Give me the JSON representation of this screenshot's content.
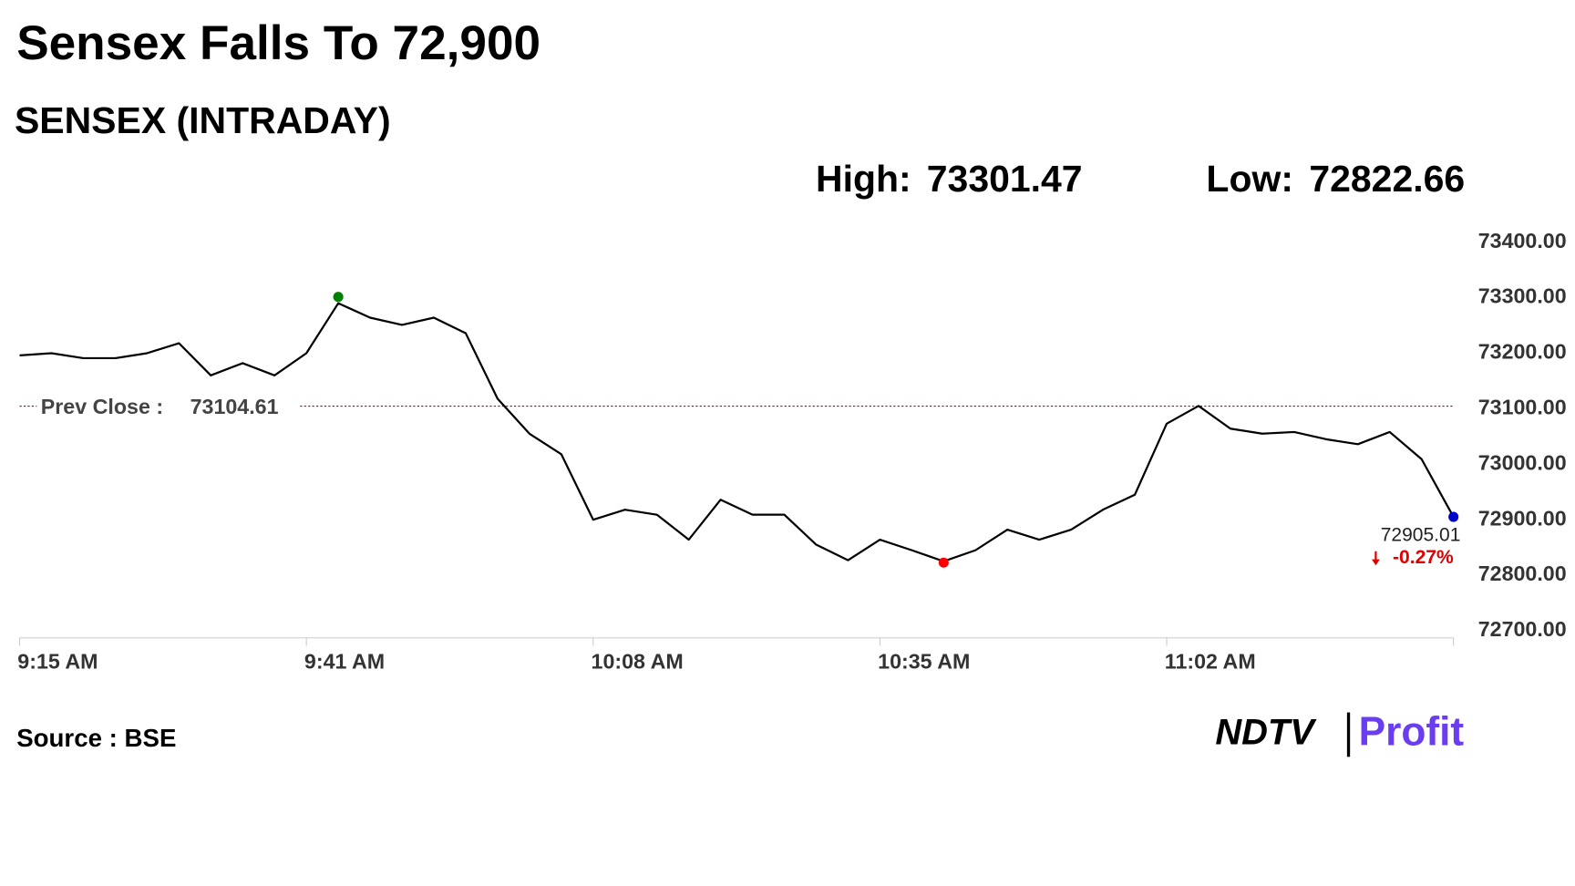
{
  "chart_data": {
    "type": "line",
    "title": "Sensex Falls To 72,900",
    "subtitle": "SENSEX (INTRADAY)",
    "high_label": "High:",
    "high": 73301.47,
    "low_label": "Low:",
    "low": 72822.66,
    "prev_close_label": "Prev Close :",
    "prev_close": 73104.61,
    "change": "-0.27%",
    "source": "Source : BSE",
    "logo_left": "NDTV",
    "logo_right": "Profit",
    "categories": [
      "9:15 AM",
      null,
      null,
      null,
      null,
      null,
      null,
      null,
      null,
      "9:41 AM",
      null,
      null,
      null,
      null,
      null,
      null,
      null,
      null,
      "10:08 AM",
      null,
      null,
      null,
      null,
      null,
      null,
      null,
      null,
      "10:35 AM",
      null,
      null,
      null,
      null,
      null,
      null,
      null,
      null,
      "11:02 AM",
      null,
      null,
      null,
      null,
      null,
      null,
      null,
      null,
      null
    ],
    "series": [
      {
        "name": "SENSEX",
        "color": "#000000",
        "values": [
          73196,
          73200,
          73191,
          73191,
          73200,
          73218,
          73160,
          73182,
          73160,
          73200,
          73290,
          73264,
          73251,
          73264,
          73236,
          73118,
          73055,
          73018,
          72900,
          72918,
          72909,
          72864,
          72936,
          72909,
          72909,
          72855,
          72827,
          72864,
          72845,
          72825,
          72845,
          72882,
          72864,
          72882,
          72918,
          72945,
          73073,
          73105,
          73064,
          73055,
          73058,
          73045,
          73036,
          73058,
          73009,
          72905.01
        ]
      }
    ],
    "ylim": [
      72700,
      73400
    ],
    "yticks": [
      {
        "value": 73400,
        "label": "73400.00"
      },
      {
        "value": 73300,
        "label": "73300.00"
      },
      {
        "value": 73200,
        "label": "73200.00"
      },
      {
        "value": 73100,
        "label": "73100.00"
      },
      {
        "value": 73000,
        "label": "73000.00"
      },
      {
        "value": 72900,
        "label": "72900.00"
      },
      {
        "value": 72800,
        "label": "72800.00"
      },
      {
        "value": 72700,
        "label": "72700.00"
      }
    ],
    "high_color": "#008000",
    "low_color": "#ff0000",
    "last_color": "#0000cc",
    "prev_close_color": "#c00000",
    "change_color": "#e00000"
  }
}
